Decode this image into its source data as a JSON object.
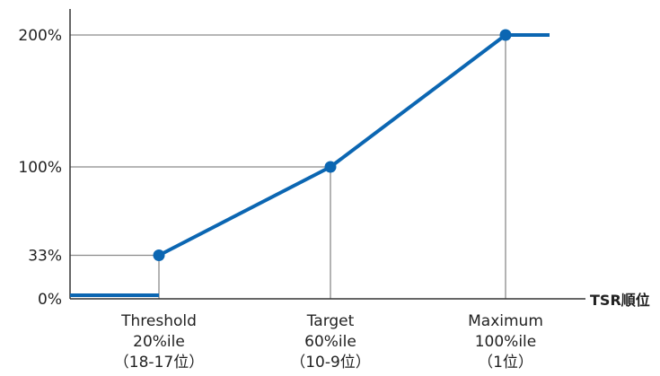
{
  "chart_data": {
    "type": "line",
    "xlabel": "TSR順位",
    "ylabel": "",
    "title": "",
    "grid": "reference lines to key points",
    "ylim": [
      0,
      200
    ],
    "y_ticks": [
      {
        "value": 0,
        "label": "0%"
      },
      {
        "value": 33,
        "label": "33%"
      },
      {
        "value": 100,
        "label": "100%"
      },
      {
        "value": 200,
        "label": "200%"
      }
    ],
    "x_ticks": [
      {
        "key": "threshold",
        "lines": [
          "Threshold",
          "20%ile",
          "（18-17位）"
        ]
      },
      {
        "key": "target",
        "lines": [
          "Target",
          "60%ile",
          "（10-9位）"
        ]
      },
      {
        "key": "maximum",
        "lines": [
          "Maximum",
          "100%ile",
          "（1位）"
        ]
      }
    ],
    "series": [
      {
        "points": [
          {
            "x": "threshold",
            "y": 33
          },
          {
            "x": "target",
            "y": 100
          },
          {
            "x": "maximum",
            "y": 200
          }
        ],
        "below_threshold_value": 0,
        "above_maximum_value": 200
      }
    ],
    "colors": {
      "series": "#0b66b2",
      "axis": "#333333",
      "guide": "#8a8a8a"
    }
  }
}
